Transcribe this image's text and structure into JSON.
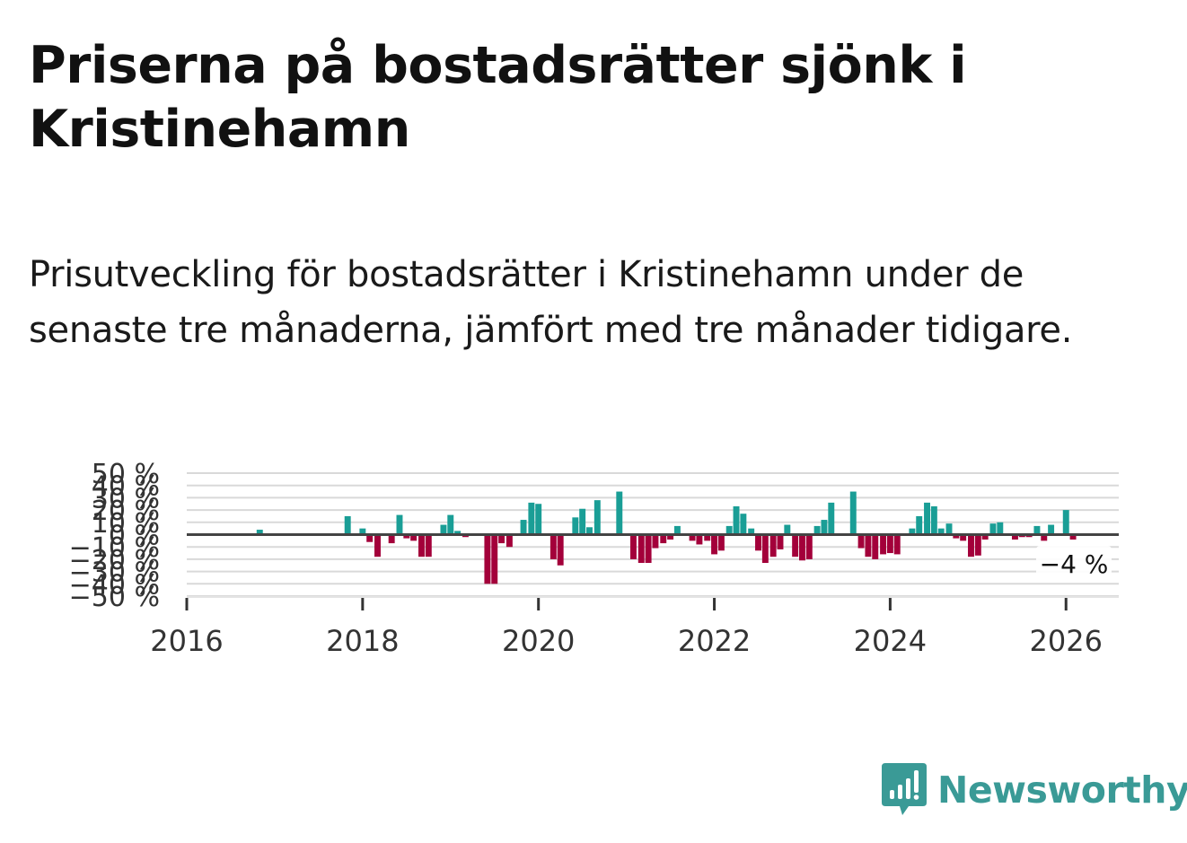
{
  "title": "Priserna på bostadsrätter sjönk i Kristinehamn",
  "subtitle": "Prisutveckling för bostadsrätter i Kristinehamn under de senaste tre månaderna, jämfört med tre månader tidigare.",
  "logo_text": "Newsworthy",
  "colors": {
    "positive": "#1a9e96",
    "negative": "#a3003a",
    "grid": "#d9d9d9",
    "zero": "#444444",
    "logo": "#3a9a96"
  },
  "chart_data": {
    "type": "bar",
    "title": "",
    "xlabel": "",
    "ylabel": "",
    "ylim": [
      -50,
      50
    ],
    "xlim": [
      2016.0,
      2026.6
    ],
    "y_ticks": [
      "50 %",
      "40 %",
      "30 %",
      "20 %",
      "10 %",
      "0 %",
      "−10 %",
      "−20 %",
      "−30 %",
      "−40 %",
      "−50 %"
    ],
    "y_tick_values": [
      50,
      40,
      30,
      20,
      10,
      0,
      -10,
      -20,
      -30,
      -40,
      -50
    ],
    "x_ticks": [
      "2016",
      "2018",
      "2020",
      "2022",
      "2024",
      "2026"
    ],
    "x_tick_values": [
      2016,
      2018,
      2020,
      2022,
      2024,
      2026
    ],
    "annotation": "−4 %",
    "series": [
      {
        "name": "Prisutveckling",
        "points": [
          {
            "x": 2016.83,
            "y": 4
          },
          {
            "x": 2017.83,
            "y": 15
          },
          {
            "x": 2018.0,
            "y": 5
          },
          {
            "x": 2018.08,
            "y": -6
          },
          {
            "x": 2018.17,
            "y": -18
          },
          {
            "x": 2018.33,
            "y": -7
          },
          {
            "x": 2018.42,
            "y": 16
          },
          {
            "x": 2018.5,
            "y": -3
          },
          {
            "x": 2018.58,
            "y": -5
          },
          {
            "x": 2018.67,
            "y": -18
          },
          {
            "x": 2018.75,
            "y": -18
          },
          {
            "x": 2018.92,
            "y": 8
          },
          {
            "x": 2019.0,
            "y": 16
          },
          {
            "x": 2019.08,
            "y": 3
          },
          {
            "x": 2019.17,
            "y": -2
          },
          {
            "x": 2019.42,
            "y": -40
          },
          {
            "x": 2019.5,
            "y": -40
          },
          {
            "x": 2019.58,
            "y": -7
          },
          {
            "x": 2019.67,
            "y": -10
          },
          {
            "x": 2019.83,
            "y": 12
          },
          {
            "x": 2019.92,
            "y": 26
          },
          {
            "x": 2020.0,
            "y": 25
          },
          {
            "x": 2020.17,
            "y": -20
          },
          {
            "x": 2020.25,
            "y": -25
          },
          {
            "x": 2020.42,
            "y": 14
          },
          {
            "x": 2020.5,
            "y": 21
          },
          {
            "x": 2020.58,
            "y": 6
          },
          {
            "x": 2020.67,
            "y": 28
          },
          {
            "x": 2020.92,
            "y": 35
          },
          {
            "x": 2021.08,
            "y": -20
          },
          {
            "x": 2021.17,
            "y": -23
          },
          {
            "x": 2021.25,
            "y": -23
          },
          {
            "x": 2021.33,
            "y": -11
          },
          {
            "x": 2021.42,
            "y": -7
          },
          {
            "x": 2021.5,
            "y": -4
          },
          {
            "x": 2021.58,
            "y": 7
          },
          {
            "x": 2021.75,
            "y": -5
          },
          {
            "x": 2021.83,
            "y": -8
          },
          {
            "x": 2021.92,
            "y": -5
          },
          {
            "x": 2022.0,
            "y": -5
          },
          {
            "x": 2022.0,
            "y": -16
          },
          {
            "x": 2022.08,
            "y": -13
          },
          {
            "x": 2022.17,
            "y": 7
          },
          {
            "x": 2022.25,
            "y": 23
          },
          {
            "x": 2022.33,
            "y": 17
          },
          {
            "x": 2022.42,
            "y": 5
          },
          {
            "x": 2022.5,
            "y": -13
          },
          {
            "x": 2022.58,
            "y": -23
          },
          {
            "x": 2022.67,
            "y": -18
          },
          {
            "x": 2022.75,
            "y": -12
          },
          {
            "x": 2022.83,
            "y": 8
          },
          {
            "x": 2022.92,
            "y": -18
          },
          {
            "x": 2023.0,
            "y": -21
          },
          {
            "x": 2023.08,
            "y": -20
          },
          {
            "x": 2023.17,
            "y": 7
          },
          {
            "x": 2023.25,
            "y": 12
          },
          {
            "x": 2023.33,
            "y": 26
          },
          {
            "x": 2023.58,
            "y": 35
          },
          {
            "x": 2023.67,
            "y": -11
          },
          {
            "x": 2023.75,
            "y": -18
          },
          {
            "x": 2023.83,
            "y": -20
          },
          {
            "x": 2023.92,
            "y": -16
          },
          {
            "x": 2024.0,
            "y": -15
          },
          {
            "x": 2024.08,
            "y": -16
          },
          {
            "x": 2024.25,
            "y": 5
          },
          {
            "x": 2024.33,
            "y": 15
          },
          {
            "x": 2024.42,
            "y": 26
          },
          {
            "x": 2024.5,
            "y": 23
          },
          {
            "x": 2024.58,
            "y": 5
          },
          {
            "x": 2024.67,
            "y": 9
          },
          {
            "x": 2024.75,
            "y": -3
          },
          {
            "x": 2024.83,
            "y": -5
          },
          {
            "x": 2024.92,
            "y": -18
          },
          {
            "x": 2025.0,
            "y": -17
          },
          {
            "x": 2025.08,
            "y": -4
          },
          {
            "x": 2025.17,
            "y": 9
          },
          {
            "x": 2025.25,
            "y": 10
          },
          {
            "x": 2025.42,
            "y": -4
          },
          {
            "x": 2025.5,
            "y": -2
          },
          {
            "x": 2025.58,
            "y": -2
          },
          {
            "x": 2025.67,
            "y": 7
          },
          {
            "x": 2025.75,
            "y": -5
          },
          {
            "x": 2025.83,
            "y": 8
          },
          {
            "x": 2026.0,
            "y": 20
          },
          {
            "x": 2026.08,
            "y": -4
          }
        ]
      }
    ]
  }
}
